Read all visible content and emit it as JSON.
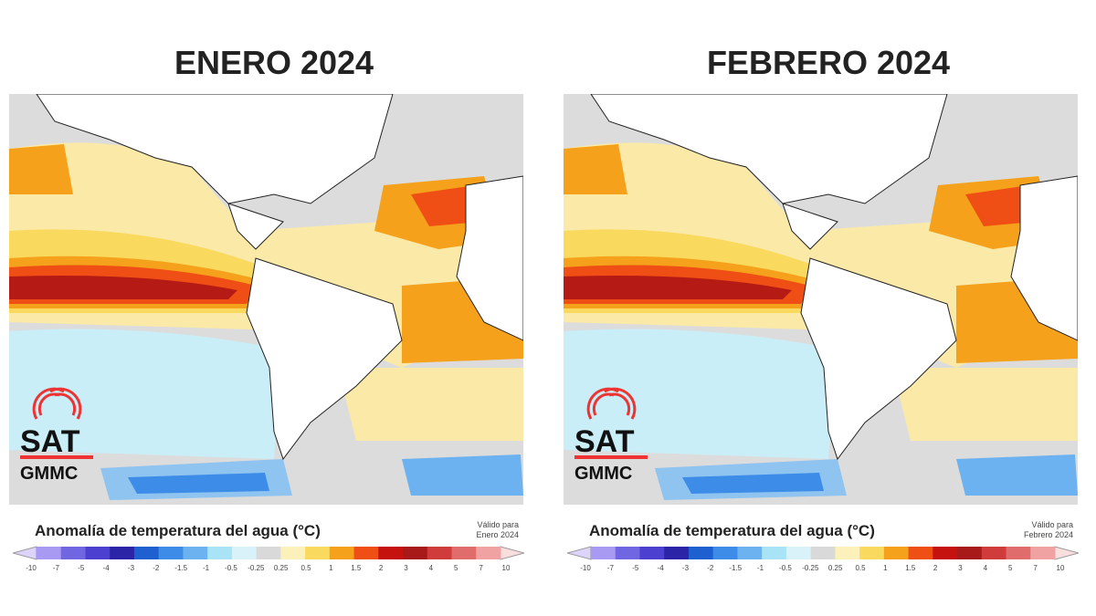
{
  "panels": [
    {
      "title": "ENERO 2024",
      "legend_title": "Anomalía de temperatura del agua (°C)",
      "valid_label": "Válido para",
      "valid_period": "Enero 2024",
      "logo": {
        "name": "SAT",
        "subtitle": "GMMC"
      }
    },
    {
      "title": "FEBRERO 2024",
      "legend_title": "Anomalía de temperatura del agua (°C)",
      "valid_label": "Válido para",
      "valid_period": "Febrero 2024",
      "logo": {
        "name": "SAT",
        "subtitle": "GMMC"
      }
    }
  ],
  "legend": {
    "ticks": [
      "-10",
      "-7",
      "-5",
      "-4",
      "-3",
      "-2",
      "-1.5",
      "-1",
      "-0.5",
      "-0.25",
      "0.25",
      "0.5",
      "1",
      "1.5",
      "2",
      "3",
      "4",
      "5",
      "7",
      "10"
    ],
    "colors": [
      "#a89af2",
      "#7166e2",
      "#4b40cf",
      "#2b24a6",
      "#1f60d0",
      "#3d8ce8",
      "#6cb2f0",
      "#a8e4f5",
      "#d9f2fa",
      "#d9d9d9",
      "#fcf1bb",
      "#f9d95e",
      "#f5a11b",
      "#ef4f14",
      "#c6120f",
      "#a81a1a",
      "#d03b3b",
      "#e06c6c",
      "#f0a2a2"
    ],
    "low_color": "#dcd4fa",
    "high_color": "#f9dede"
  }
}
